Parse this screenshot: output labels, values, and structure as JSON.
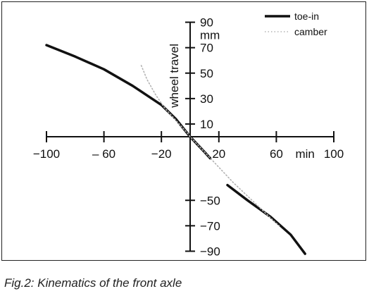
{
  "caption": "Fig.2: Kinematics of the front axle",
  "colors": {
    "axis": "#111111",
    "toe_in": "#111111",
    "camber": "#b3b3b3"
  },
  "chart_data": {
    "type": "line",
    "xlabel": "min",
    "ylabel": "wheel travel",
    "yunit": "mm",
    "xlim": [
      -100,
      100
    ],
    "ylim": [
      -90,
      90
    ],
    "x_ticks": [
      -100,
      -60,
      -20,
      20,
      60,
      100
    ],
    "x_tick_labels": [
      "−100",
      "– 60",
      "−20",
      "20",
      "60",
      "100"
    ],
    "y_ticks": [
      90,
      70,
      50,
      30,
      10,
      -50,
      -70,
      -90
    ],
    "y_tick_labels": [
      "90",
      "70",
      "50",
      "30",
      "10",
      "−50",
      "−70",
      "−90"
    ],
    "grid": false,
    "legend_position": "top-right",
    "series": [
      {
        "name": "toe-in",
        "style": "solid",
        "color": "#111111",
        "segments": [
          {
            "x": [
              -100,
              -80,
              -60,
              -40,
              -20,
              -10,
              0,
              10,
              14
            ],
            "y": [
              72,
              63,
              53,
              40,
              25,
              14,
              0,
              -12,
              -17
            ]
          },
          {
            "x": [
              26,
              40,
              56,
              70,
              80
            ],
            "y": [
              -38,
              -50,
              -63,
              -77,
              -92
            ]
          }
        ]
      },
      {
        "name": "camber",
        "style": "dotted",
        "color": "#b3b3b3",
        "segments": [
          {
            "x": [
              -34,
              -30,
              -24,
              -18,
              -10,
              -2,
              0,
              5,
              15,
              30,
              45,
              58,
              62
            ],
            "y": [
              56,
              45,
              33,
              23,
              13,
              3,
              0,
              -6,
              -18,
              -36,
              -52,
              -66,
              -70
            ]
          }
        ]
      }
    ]
  }
}
